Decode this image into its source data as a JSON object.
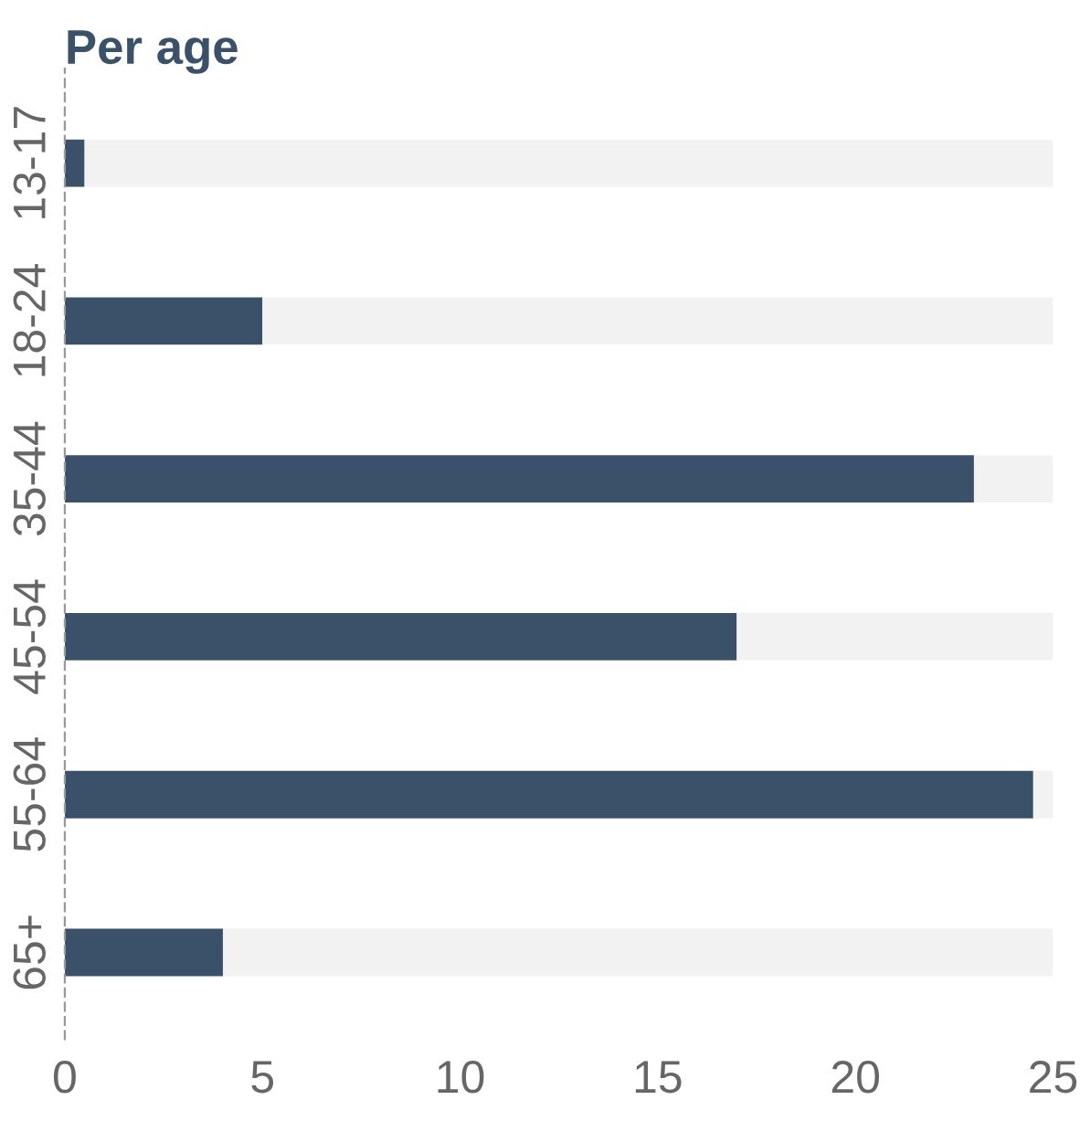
{
  "chart_data": {
    "type": "bar",
    "orientation": "horizontal",
    "stacked": true,
    "title": "Per age",
    "categories": [
      "13-17",
      "18-24",
      "35-44",
      "45-54",
      "55-64",
      "65+"
    ],
    "series": [
      {
        "color": "#3a5169",
        "values": [
          0.5,
          5,
          23,
          17,
          24.5,
          4
        ]
      },
      {
        "color": "#f2f2f2",
        "values": [
          24.5,
          20,
          2,
          8,
          0.5,
          21
        ]
      }
    ],
    "xlim": [
      0,
      25
    ],
    "xticks": [
      0,
      5,
      10,
      15,
      20,
      25
    ],
    "grid": false,
    "legend": false
  }
}
